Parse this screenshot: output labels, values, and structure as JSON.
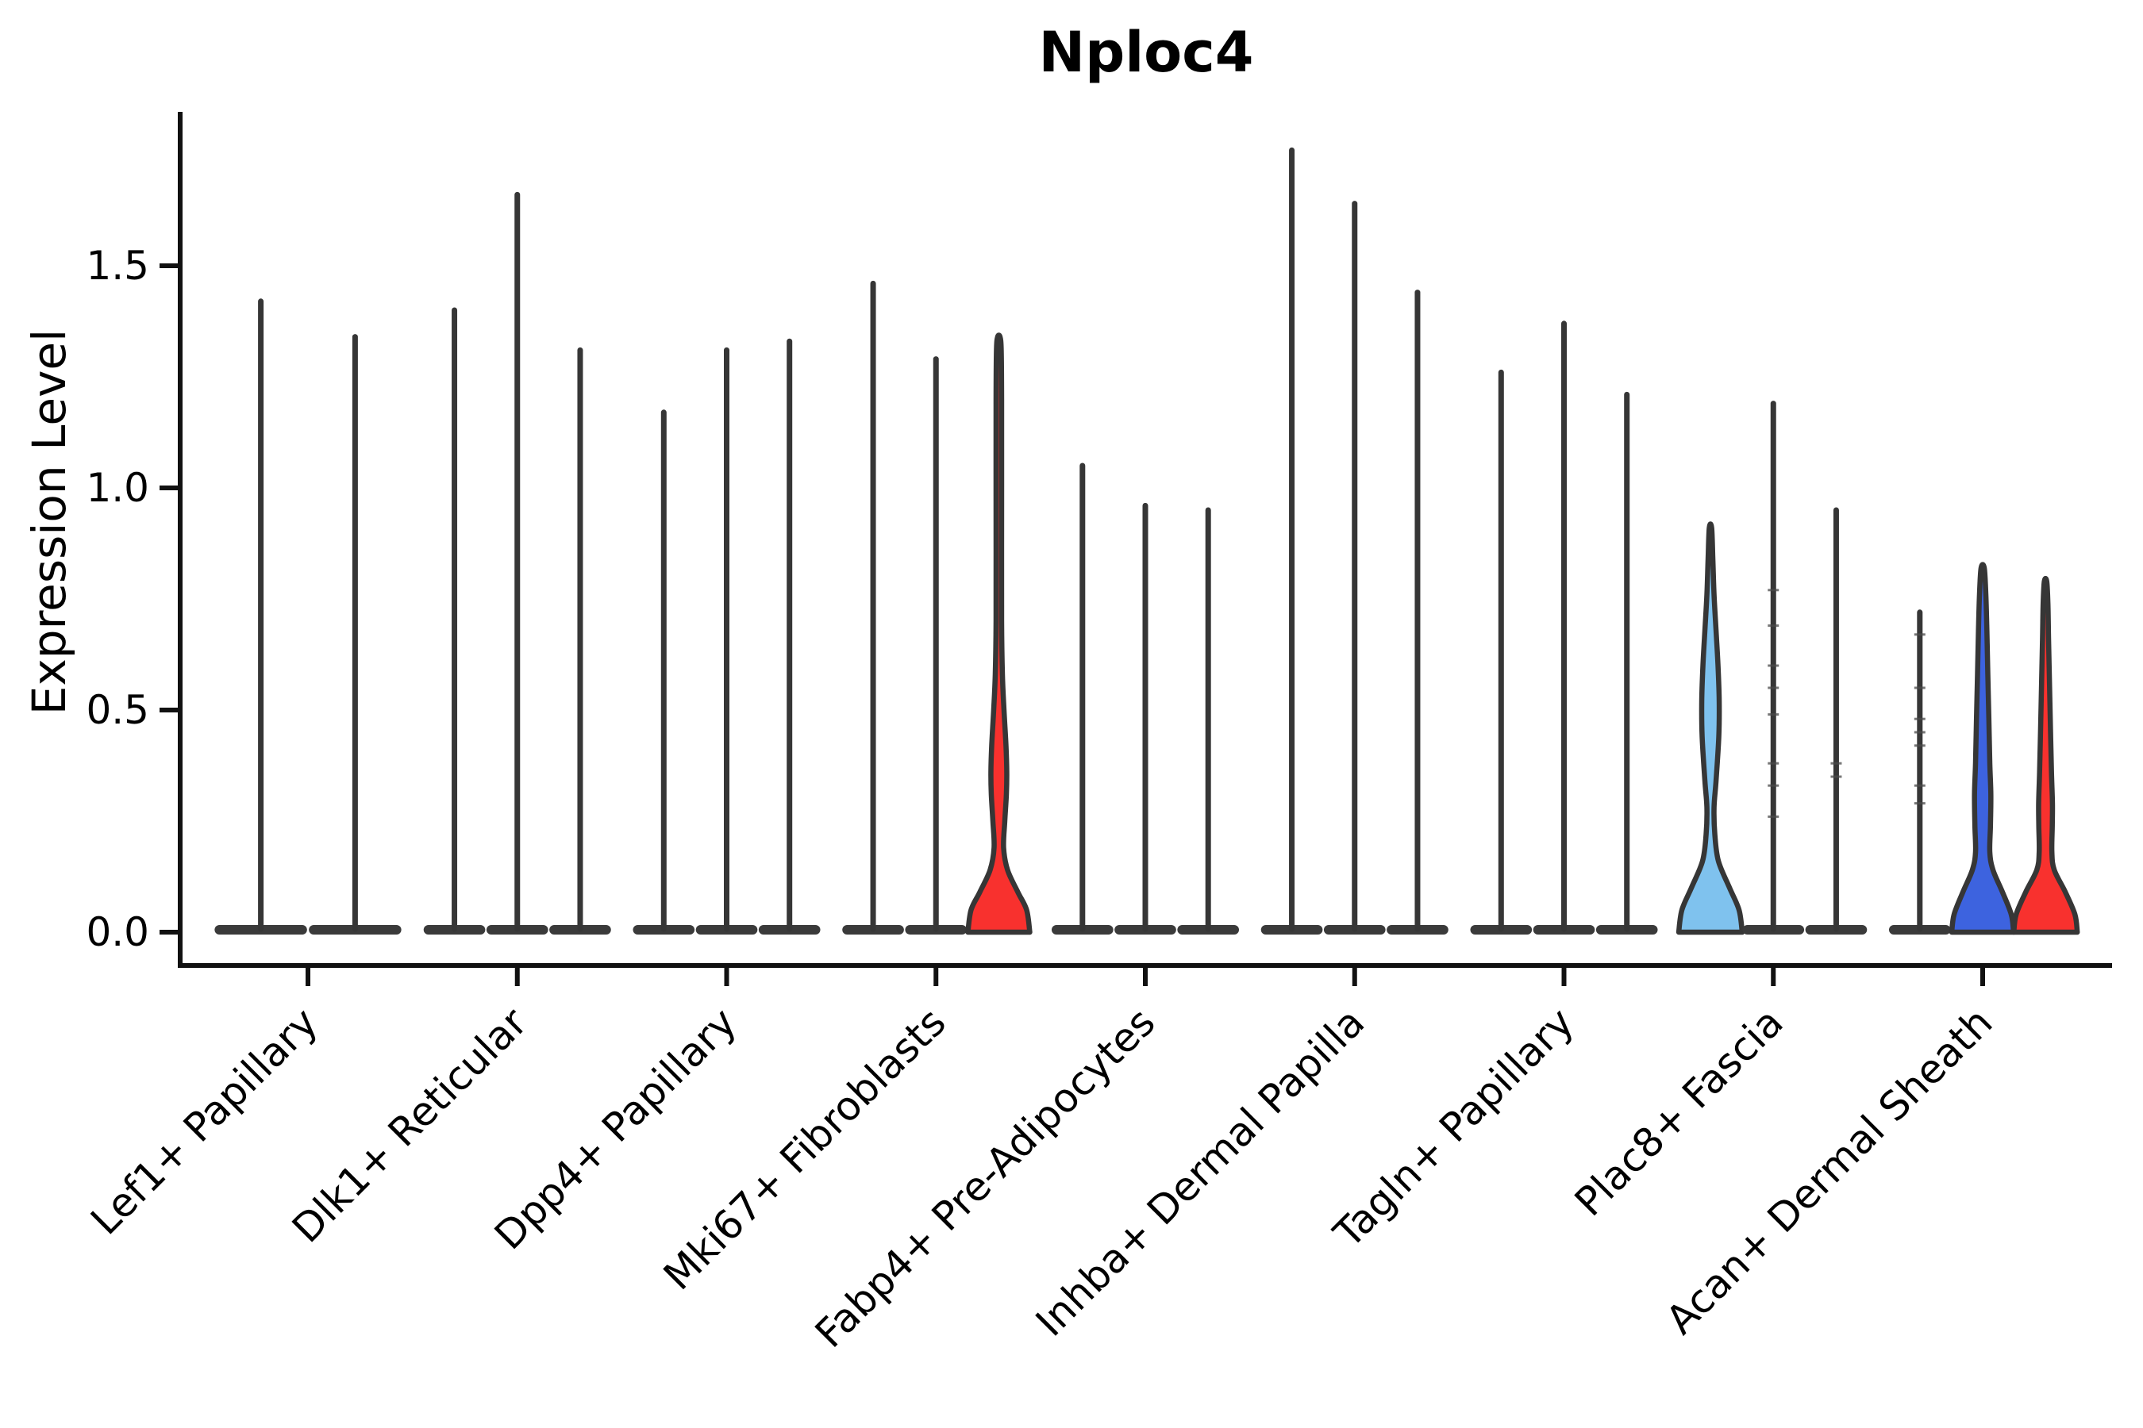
{
  "chart_data": {
    "type": "violin",
    "title": "Nploc4",
    "ylabel": "Expression Level",
    "xlabel": "",
    "yticks": [
      0.0,
      0.5,
      1.0,
      1.5
    ],
    "ylim": [
      -0.08,
      1.85
    ],
    "legend": "none",
    "grid": false,
    "colors": {
      "red": "#f8312e",
      "skyblue": "#7fc2ee",
      "blue": "#3d63df",
      "ink": "#363636",
      "axis": "#111111"
    },
    "categories": [
      "Lef1+ Papillary",
      "Dlk1+ Reticular",
      "Dpp4+ Papillary",
      "Mki67+ Fibroblasts",
      "Fabp4+ Pre-Adipocytes",
      "Inhba+ Dermal Papilla",
      "Tagln+ Papillary",
      "Plac8+ Fascia",
      "Acan+ Dermal Sheath"
    ],
    "groups": [
      {
        "category": "Lef1+ Papillary",
        "violins": [
          {
            "style": "thin",
            "max": 1.42
          },
          {
            "style": "thin",
            "max": 1.34
          }
        ]
      },
      {
        "category": "Dlk1+ Reticular",
        "violins": [
          {
            "style": "thin",
            "max": 1.4
          },
          {
            "style": "thin",
            "max": 1.66
          },
          {
            "style": "thin",
            "max": 1.31
          }
        ]
      },
      {
        "category": "Dpp4+ Papillary",
        "violins": [
          {
            "style": "thin",
            "max": 1.17
          },
          {
            "style": "thin",
            "max": 1.31
          },
          {
            "style": "thin",
            "max": 1.33
          }
        ]
      },
      {
        "category": "Mki67+ Fibroblasts",
        "violins": [
          {
            "style": "thin",
            "max": 1.46
          },
          {
            "style": "thin",
            "max": 1.29
          },
          {
            "style": "filled",
            "color": "red",
            "max": 1.34,
            "profile": [
              [
                0,
                39
              ],
              [
                0.05,
                35
              ],
              [
                0.09,
                24
              ],
              [
                0.14,
                11
              ],
              [
                0.19,
                6
              ],
              [
                0.25,
                7.5
              ],
              [
                0.31,
                9.5
              ],
              [
                0.36,
                10
              ],
              [
                0.42,
                9
              ],
              [
                0.5,
                6.5
              ],
              [
                0.58,
                4.5
              ],
              [
                0.7,
                3.5
              ],
              [
                0.95,
                3.5
              ],
              [
                1.2,
                3.5
              ],
              [
                1.31,
                3
              ],
              [
                1.34,
                1.5
              ]
            ]
          }
        ]
      },
      {
        "category": "Fabp4+ Pre-Adipocytes",
        "violins": [
          {
            "style": "thin",
            "max": 1.05
          },
          {
            "style": "thin",
            "max": 0.96
          },
          {
            "style": "thin",
            "max": 0.95
          }
        ]
      },
      {
        "category": "Inhba+ Dermal Papilla",
        "violins": [
          {
            "style": "thin",
            "max": 1.76
          },
          {
            "style": "thin",
            "max": 1.64
          },
          {
            "style": "thin",
            "max": 1.44
          }
        ]
      },
      {
        "category": "Tagln+ Papillary",
        "violins": [
          {
            "style": "thin",
            "max": 1.26
          },
          {
            "style": "thin",
            "max": 1.37
          },
          {
            "style": "thin",
            "max": 1.21
          }
        ]
      },
      {
        "category": "Plac8+ Fascia",
        "violins": [
          {
            "style": "filled",
            "color": "skyblue",
            "max": 0.91,
            "profile": [
              [
                0,
                40
              ],
              [
                0.05,
                36
              ],
              [
                0.1,
                24
              ],
              [
                0.16,
                10
              ],
              [
                0.22,
                5.5
              ],
              [
                0.28,
                4.5
              ],
              [
                0.34,
                7
              ],
              [
                0.44,
                10.5
              ],
              [
                0.52,
                11
              ],
              [
                0.6,
                9.5
              ],
              [
                0.68,
                7
              ],
              [
                0.76,
                4.5
              ],
              [
                0.84,
                3
              ],
              [
                0.91,
                1.5
              ]
            ]
          },
          {
            "style": "thin",
            "max": 1.19,
            "dashes": [
              0.77,
              0.69,
              0.6,
              0.55,
              0.49,
              0.38,
              0.33,
              0.26
            ]
          },
          {
            "style": "thin",
            "max": 0.95,
            "dashes": [
              0.38,
              0.35
            ]
          }
        ]
      },
      {
        "category": "Acan+ Dermal Sheath",
        "violins": [
          {
            "style": "thin",
            "max": 0.72,
            "dashes": [
              0.67,
              0.55,
              0.48,
              0.45,
              0.42,
              0.33,
              0.29
            ]
          },
          {
            "style": "filled",
            "color": "blue",
            "max": 0.82,
            "profile": [
              [
                0,
                39
              ],
              [
                0.04,
                36
              ],
              [
                0.09,
                25
              ],
              [
                0.14,
                13
              ],
              [
                0.18,
                9
              ],
              [
                0.24,
                9.8
              ],
              [
                0.31,
                10.3
              ],
              [
                0.38,
                9
              ],
              [
                0.48,
                7.8
              ],
              [
                0.58,
                6.5
              ],
              [
                0.68,
                5.3
              ],
              [
                0.76,
                4
              ],
              [
                0.82,
                2
              ]
            ]
          },
          {
            "style": "filled",
            "color": "red",
            "max": 0.79,
            "profile": [
              [
                0,
                40
              ],
              [
                0.04,
                37
              ],
              [
                0.09,
                25
              ],
              [
                0.14,
                11
              ],
              [
                0.18,
                8
              ],
              [
                0.24,
                8.5
              ],
              [
                0.29,
                8.7
              ],
              [
                0.36,
                7.5
              ],
              [
                0.46,
                6.2
              ],
              [
                0.56,
                5
              ],
              [
                0.66,
                3.8
              ],
              [
                0.74,
                3
              ],
              [
                0.79,
                1.5
              ]
            ]
          }
        ]
      }
    ]
  }
}
